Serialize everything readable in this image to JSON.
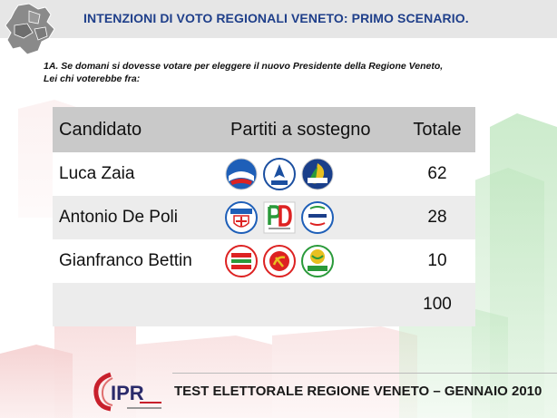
{
  "header": {
    "title": "INTENZIONI DI VOTO REGIONALI VENETO: PRIMO SCENARIO."
  },
  "question": {
    "line1": "1A. Se domani si dovesse votare per eleggere il nuovo Presidente della Regione Veneto,",
    "line2": "Lei chi voterebbe fra:"
  },
  "table": {
    "headers": {
      "candidate": "Candidato",
      "parties": "Partiti a sostegno",
      "total": "Totale"
    },
    "rows": [
      {
        "candidate": "Luca Zaia",
        "total": "62",
        "logos": [
          "popolo-della-liberta-logo",
          "lega-nord-logo",
          "la-destra-logo"
        ]
      },
      {
        "candidate": "Antonio De Poli",
        "total": "28",
        "logos": [
          "udc-casini-logo",
          "partito-democratico-logo",
          "di-pietro-italia-dei-valori-logo"
        ]
      },
      {
        "candidate": "Gianfranco Bettin",
        "total": "10",
        "logos": [
          "sinistra-ecologia-liberta-logo",
          "rifondazione-comunisti-logo",
          "verdi-logo"
        ]
      }
    ],
    "sum_total": "100"
  },
  "footer": {
    "text": "TEST ELETTORALE REGIONE VENETO – GENNAIO 2010"
  },
  "colors": {
    "title_blue": "#1f3f8a",
    "header_gray": "#c9c9c9",
    "band_gray": "#e6e6e6",
    "ipr_red": "#c8202c"
  }
}
